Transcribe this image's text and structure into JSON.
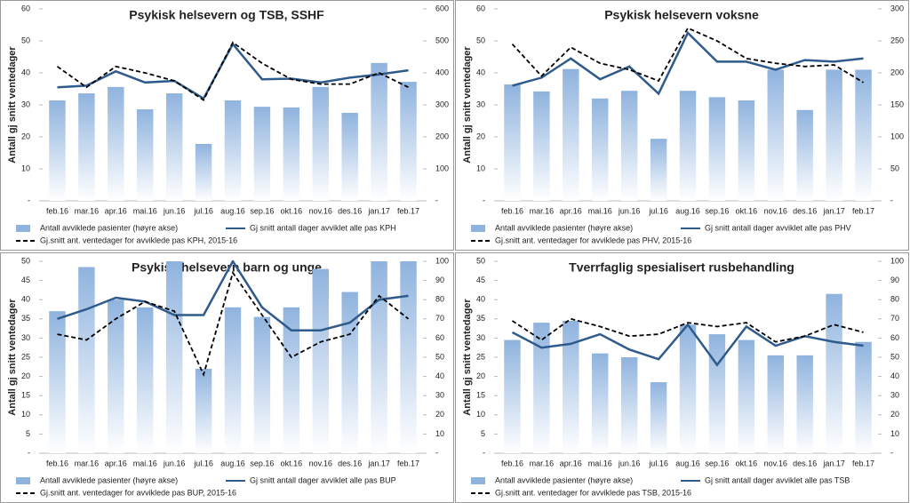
{
  "chart_data": [
    {
      "type": "combo",
      "title": "Psykisk helsevern og TSB, SSHF",
      "y_label": "Antall gj snitt ventedager",
      "categories": [
        "feb.16",
        "mar.16",
        "apr.16",
        "mai.16",
        "jun.16",
        "jul.16",
        "aug.16",
        "sep.16",
        "okt.16",
        "nov.16",
        "des.16",
        "jan.17",
        "feb.17"
      ],
      "ylim": [
        0,
        60
      ],
      "yticks": [
        {
          "value": 0,
          "label": "-"
        },
        10,
        20,
        30,
        40,
        50,
        60
      ],
      "y2lim": [
        0,
        600
      ],
      "y2ticks": [
        {
          "value": 0,
          "label": "-"
        },
        100,
        200,
        300,
        400,
        500,
        600
      ],
      "series": [
        {
          "name": "Antall avviklede pasienter (høyre akse)",
          "type": "bar",
          "axis": "y2",
          "color": "#8fb3de",
          "values": [
            314,
            336,
            356,
            286,
            336,
            178,
            314,
            294,
            292,
            356,
            275,
            431,
            372
          ]
        },
        {
          "name": "Gj snitt antall dager avviklet alle pas KPH",
          "type": "line",
          "color": "#2f5b8c",
          "values": [
            35.5,
            36,
            40.5,
            37,
            37.5,
            32,
            49,
            38,
            38.2,
            37,
            38.5,
            39.5,
            40.8
          ]
        },
        {
          "name": "Gj.snitt ant. ventedager for avviklede pas KPH, 2015-16",
          "type": "line",
          "dashed": true,
          "color": "#000000",
          "values": [
            42,
            35.5,
            42,
            40,
            37.5,
            31.5,
            49.5,
            43,
            38,
            36.5,
            36.5,
            40,
            35.5
          ]
        }
      ]
    },
    {
      "type": "combo",
      "title": "Psykisk helsevern voksne",
      "y_label": "Antall gj snitt ventedager",
      "categories": [
        "feb.16",
        "mar.16",
        "apr.16",
        "mai.16",
        "jun.16",
        "jul.16",
        "aug.16",
        "sep.16",
        "okt.16",
        "nov.16",
        "des.16",
        "jan.17",
        "feb.17"
      ],
      "ylim": [
        0,
        60
      ],
      "yticks": [
        {
          "value": 0,
          "label": "-"
        },
        10,
        20,
        30,
        40,
        50,
        60
      ],
      "y2lim": [
        0,
        300
      ],
      "y2ticks": [
        {
          "value": 0,
          "label": "-"
        },
        50,
        100,
        150,
        200,
        250,
        300
      ],
      "series": [
        {
          "name": "Antall avviklede pasienter (høyre akse)",
          "type": "bar",
          "axis": "y2",
          "color": "#8fb3de",
          "values": [
            182,
            171,
            206,
            160,
            172,
            97,
            172,
            162,
            157,
            205,
            142,
            205,
            205
          ]
        },
        {
          "name": "Gj snitt antall dager avviklet alle pas PHV",
          "type": "line",
          "color": "#2f5b8c",
          "values": [
            36,
            38.5,
            44.5,
            38,
            42,
            33.5,
            52.5,
            43.5,
            43.5,
            41,
            44,
            43.5,
            44.5
          ]
        },
        {
          "name": "Gj.snitt ant. ventedager for avviklede pas PHV, 2015-16",
          "type": "line",
          "dashed": true,
          "color": "#000000",
          "values": [
            49,
            39,
            48,
            43,
            41,
            37.5,
            54,
            50,
            44.5,
            43,
            42,
            42.5,
            37
          ]
        }
      ]
    },
    {
      "type": "combo",
      "title": "Psykisk helsevern barn og unge",
      "y_label": "Antall gj snitt ventedager",
      "categories": [
        "feb.16",
        "mar.16",
        "apr.16",
        "mai.16",
        "jun.16",
        "jul.16",
        "aug.16",
        "sep.16",
        "okt.16",
        "nov.16",
        "des.16",
        "jan.17",
        "feb.17"
      ],
      "ylim": [
        0,
        50
      ],
      "yticks": [
        {
          "value": 0,
          "label": "-"
        },
        5,
        10,
        15,
        20,
        25,
        30,
        35,
        40,
        45,
        50
      ],
      "y2lim": [
        0,
        100
      ],
      "y2ticks": [
        {
          "value": 0,
          "label": "-"
        },
        10,
        20,
        30,
        40,
        50,
        60,
        70,
        80,
        90,
        100
      ],
      "series": [
        {
          "name": "Antall avviklede pasienter (høyre akse)",
          "type": "bar",
          "axis": "y2",
          "color": "#8fb3de",
          "values": [
            74,
            97,
            80,
            76,
            100,
            44,
            76,
            71,
            76,
            96,
            84,
            100,
            100
          ]
        },
        {
          "name": "Gj snitt antall dager avviklet alle pas BUP",
          "type": "line",
          "color": "#2f5b8c",
          "values": [
            35,
            37.5,
            40.5,
            39.5,
            36,
            36,
            50,
            38,
            32,
            32,
            34,
            40,
            41
          ]
        },
        {
          "name": "Gj.snitt ant. ventedager for avviklede pas BUP, 2015-16",
          "type": "line",
          "dashed": true,
          "color": "#000000",
          "values": [
            31,
            29.5,
            35,
            39.5,
            37,
            20.5,
            47,
            36,
            25,
            29,
            31,
            41,
            35
          ]
        }
      ]
    },
    {
      "type": "combo",
      "title": "Tverrfaglig spesialisert rusbehandling",
      "y_label": "Antall gj snitt ventedager",
      "categories": [
        "feb.16",
        "mar.16",
        "apr.16",
        "mai.16",
        "jun.16",
        "jul.16",
        "aug.16",
        "sep.16",
        "okt.16",
        "nov.16",
        "des.16",
        "jan.17",
        "feb.17"
      ],
      "ylim": [
        0,
        50
      ],
      "yticks": [
        {
          "value": 0,
          "label": "-"
        },
        5,
        10,
        15,
        20,
        25,
        30,
        35,
        40,
        45,
        50
      ],
      "y2lim": [
        0,
        100
      ],
      "y2ticks": [
        {
          "value": 0,
          "label": "-"
        },
        10,
        20,
        30,
        40,
        50,
        60,
        70,
        80,
        90,
        100
      ],
      "series": [
        {
          "name": "Antall avviklede pasienter (høyre akse)",
          "type": "bar",
          "axis": "y2",
          "color": "#8fb3de",
          "values": [
            59,
            68,
            69,
            52,
            50,
            37,
            67,
            62,
            59,
            51,
            51,
            83,
            58
          ]
        },
        {
          "name": "Gj snitt antall dager avviklet alle pas TSB",
          "type": "line",
          "color": "#2f5b8c",
          "values": [
            31.5,
            27.5,
            28.5,
            31,
            27,
            24.5,
            33.5,
            23,
            33,
            28,
            30.5,
            29,
            28
          ]
        },
        {
          "name": "Gj.snitt ant. ventedager for avviklede pas TSB, 2015-16",
          "type": "line",
          "dashed": true,
          "color": "#000000",
          "values": [
            34.5,
            29.5,
            35,
            33,
            30.5,
            31,
            34,
            33,
            34,
            29,
            30.5,
            33.5,
            31.5
          ]
        }
      ]
    }
  ]
}
